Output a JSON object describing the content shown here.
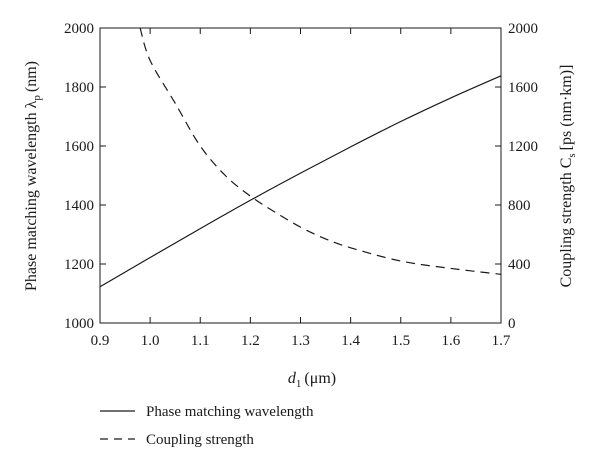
{
  "chart_data": {
    "type": "line",
    "xlabel_main": "d",
    "xlabel_sub": "1",
    "xlabel_unit": "(μm)",
    "ylabel_left_main": "Phase matching wavelength λ",
    "ylabel_left_sub": "p",
    "ylabel_left_unit": "(nm)",
    "ylabel_right_main": "Coupling strength C",
    "ylabel_right_sub": "s",
    "ylabel_right_unit": "[ps (nm·km)]",
    "xlim": [
      0.9,
      1.7
    ],
    "ylim_left": [
      1000,
      2000
    ],
    "ylim_right": [
      0,
      2000
    ],
    "x_ticks": [
      "0.9",
      "1.0",
      "1.1",
      "1.2",
      "1.3",
      "1.4",
      "1.5",
      "1.6",
      "1.7"
    ],
    "y_left_ticks": [
      "1000",
      "1200",
      "1400",
      "1600",
      "1800",
      "2000"
    ],
    "y_right_ticks": [
      "0",
      "400",
      "800",
      "1200",
      "1600",
      "2000"
    ],
    "legend_placement": "below",
    "series": [
      {
        "name": "Phase matching wavelength",
        "axis": "left",
        "style": "solid",
        "x": [
          0.9,
          1.0,
          1.1,
          1.2,
          1.3,
          1.4,
          1.5,
          1.6,
          1.7
        ],
        "y": [
          1123,
          1222,
          1320,
          1416,
          1508,
          1597,
          1683,
          1763,
          1838
        ]
      },
      {
        "name": "Coupling strength",
        "axis": "right",
        "style": "dashed",
        "x": [
          0.98,
          1.0,
          1.05,
          1.1,
          1.15,
          1.2,
          1.25,
          1.3,
          1.35,
          1.4,
          1.5,
          1.6,
          1.7
        ],
        "y": [
          2000,
          1780,
          1490,
          1200,
          1000,
          860,
          750,
          650,
          570,
          510,
          420,
          370,
          330
        ]
      }
    ]
  }
}
